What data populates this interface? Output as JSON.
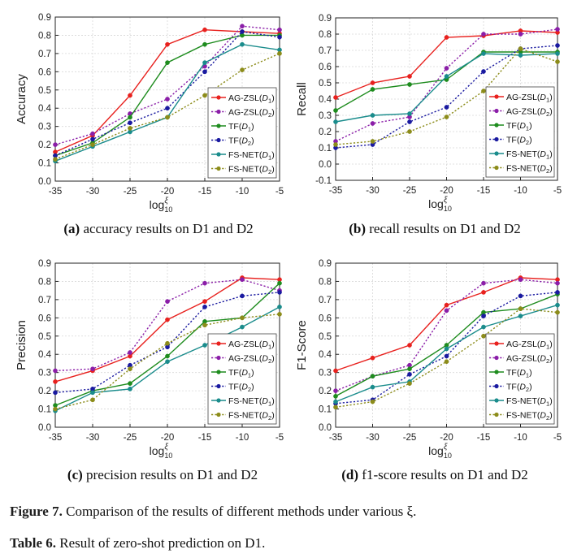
{
  "colors": {
    "AG-ZSL(D1)": "#e8211e",
    "AG-ZSL(D2)": "#8b1ea8",
    "TF(D1)": "#1e8c1e",
    "TF(D2)": "#1a1aa0",
    "FS-NET(D1)": "#1a8c8c",
    "FS-NET(D2)": "#8c8c1a"
  },
  "chart_data": [
    {
      "type": "line",
      "ylabel": "Accuracy",
      "xlabel": "log10ξ",
      "x": [
        -35,
        -30,
        -25,
        -20,
        -15,
        -10,
        -5
      ],
      "xticks": [
        "-35",
        "-30",
        "-25",
        "-20",
        "-15",
        "-10",
        "-5"
      ],
      "yticks": [
        "0.0",
        "0.1",
        "0.2",
        "0.3",
        "0.4",
        "0.5",
        "0.6",
        "0.7",
        "0.8",
        "0.9"
      ],
      "ylim": [
        0.0,
        0.9
      ],
      "legend": "bottom-right",
      "grid": true,
      "caption": {
        "label": "(a)",
        "text": "accuracy results on D1 and D2"
      },
      "series": [
        {
          "name": "AG-ZSL(D1)",
          "values": [
            0.16,
            0.25,
            0.47,
            0.75,
            0.83,
            0.82,
            0.81
          ]
        },
        {
          "name": "AG-ZSL(D2)",
          "values": [
            0.2,
            0.26,
            0.37,
            0.45,
            0.63,
            0.85,
            0.83
          ]
        },
        {
          "name": "TF(D1)",
          "values": [
            0.14,
            0.21,
            0.35,
            0.65,
            0.75,
            0.8,
            0.8
          ]
        },
        {
          "name": "TF(D2)",
          "values": [
            0.14,
            0.23,
            0.32,
            0.4,
            0.6,
            0.82,
            0.79
          ]
        },
        {
          "name": "FS-NET(D1)",
          "values": [
            0.11,
            0.19,
            0.27,
            0.35,
            0.65,
            0.75,
            0.72
          ]
        },
        {
          "name": "FS-NET(D2)",
          "values": [
            0.12,
            0.2,
            0.29,
            0.35,
            0.47,
            0.61,
            0.7
          ]
        }
      ]
    },
    {
      "type": "line",
      "ylabel": "Recall",
      "xlabel": "log10ξ",
      "x": [
        -35,
        -30,
        -25,
        -20,
        -15,
        -10,
        -5
      ],
      "xticks": [
        "-35",
        "-30",
        "-25",
        "-20",
        "-15",
        "-10",
        "-5"
      ],
      "yticks": [
        "-0.1",
        "0.0",
        "0.1",
        "0.2",
        "0.3",
        "0.4",
        "0.5",
        "0.6",
        "0.7",
        "0.8",
        "0.9"
      ],
      "ylim": [
        -0.1,
        0.9
      ],
      "legend": "bottom-right",
      "grid": true,
      "caption": {
        "label": "(b)",
        "text": "recall results on D1 and D2"
      },
      "series": [
        {
          "name": "AG-ZSL(D1)",
          "values": [
            0.41,
            0.5,
            0.54,
            0.78,
            0.79,
            0.82,
            0.81
          ]
        },
        {
          "name": "AG-ZSL(D2)",
          "values": [
            0.14,
            0.25,
            0.29,
            0.59,
            0.8,
            0.8,
            0.83
          ]
        },
        {
          "name": "TF(D1)",
          "values": [
            0.33,
            0.46,
            0.49,
            0.52,
            0.69,
            0.69,
            0.69
          ]
        },
        {
          "name": "TF(D2)",
          "values": [
            0.1,
            0.12,
            0.26,
            0.35,
            0.57,
            0.71,
            0.73
          ]
        },
        {
          "name": "FS-NET(D1)",
          "values": [
            0.26,
            0.3,
            0.31,
            0.54,
            0.68,
            0.67,
            0.68
          ]
        },
        {
          "name": "FS-NET(D2)",
          "values": [
            0.12,
            0.14,
            0.2,
            0.29,
            0.45,
            0.71,
            0.63
          ]
        }
      ]
    },
    {
      "type": "line",
      "ylabel": "Precision",
      "xlabel": "log10ξ",
      "x": [
        -35,
        -30,
        -25,
        -20,
        -15,
        -10,
        -5
      ],
      "xticks": [
        "-35",
        "-30",
        "-25",
        "-20",
        "-15",
        "-10",
        "-5"
      ],
      "yticks": [
        "0.0",
        "0.1",
        "0.2",
        "0.3",
        "0.4",
        "0.5",
        "0.6",
        "0.7",
        "0.8",
        "0.9"
      ],
      "ylim": [
        0.0,
        0.9
      ],
      "legend": "bottom-right",
      "grid": true,
      "caption": {
        "label": "(c)",
        "text": "precision results on D1 and D2"
      },
      "series": [
        {
          "name": "AG-ZSL(D1)",
          "values": [
            0.25,
            0.31,
            0.39,
            0.59,
            0.69,
            0.82,
            0.81
          ]
        },
        {
          "name": "AG-ZSL(D2)",
          "values": [
            0.31,
            0.32,
            0.41,
            0.69,
            0.79,
            0.81,
            0.75
          ]
        },
        {
          "name": "TF(D1)",
          "values": [
            0.12,
            0.2,
            0.24,
            0.39,
            0.58,
            0.6,
            0.79
          ]
        },
        {
          "name": "TF(D2)",
          "values": [
            0.19,
            0.21,
            0.34,
            0.44,
            0.66,
            0.72,
            0.74
          ]
        },
        {
          "name": "FS-NET(D1)",
          "values": [
            0.09,
            0.19,
            0.21,
            0.36,
            0.45,
            0.55,
            0.66
          ]
        },
        {
          "name": "FS-NET(D2)",
          "values": [
            0.1,
            0.15,
            0.32,
            0.46,
            0.56,
            0.6,
            0.62
          ]
        }
      ]
    },
    {
      "type": "line",
      "ylabel": "F1-Score",
      "xlabel": "log10ξ",
      "x": [
        -35,
        -30,
        -25,
        -20,
        -15,
        -10,
        -5
      ],
      "xticks": [
        "-35",
        "-30",
        "-25",
        "-20",
        "-15",
        "-10",
        "-5"
      ],
      "yticks": [
        "0.0",
        "0.1",
        "0.2",
        "0.3",
        "0.4",
        "0.5",
        "0.6",
        "0.7",
        "0.8",
        "0.9"
      ],
      "ylim": [
        0.0,
        0.9
      ],
      "legend": "bottom-right",
      "grid": true,
      "caption": {
        "label": "(d)",
        "text": "f1-score results on D1 and D2"
      },
      "series": [
        {
          "name": "AG-ZSL(D1)",
          "values": [
            0.31,
            0.38,
            0.45,
            0.67,
            0.74,
            0.82,
            0.81
          ]
        },
        {
          "name": "AG-ZSL(D2)",
          "values": [
            0.2,
            0.28,
            0.34,
            0.64,
            0.79,
            0.81,
            0.79
          ]
        },
        {
          "name": "TF(D1)",
          "values": [
            0.17,
            0.28,
            0.32,
            0.45,
            0.63,
            0.65,
            0.73
          ]
        },
        {
          "name": "TF(D2)",
          "values": [
            0.13,
            0.15,
            0.29,
            0.39,
            0.61,
            0.72,
            0.74
          ]
        },
        {
          "name": "FS-NET(D1)",
          "values": [
            0.14,
            0.22,
            0.25,
            0.43,
            0.55,
            0.61,
            0.67
          ]
        },
        {
          "name": "FS-NET(D2)",
          "values": [
            0.11,
            0.14,
            0.24,
            0.36,
            0.5,
            0.65,
            0.63
          ]
        }
      ]
    }
  ],
  "figure_caption": {
    "label": "Figure 7.",
    "text": "Comparison of the results of different methods under various ξ."
  },
  "table_caption": {
    "label": "Table 6.",
    "text": "Result of zero-shot prediction on D1."
  }
}
